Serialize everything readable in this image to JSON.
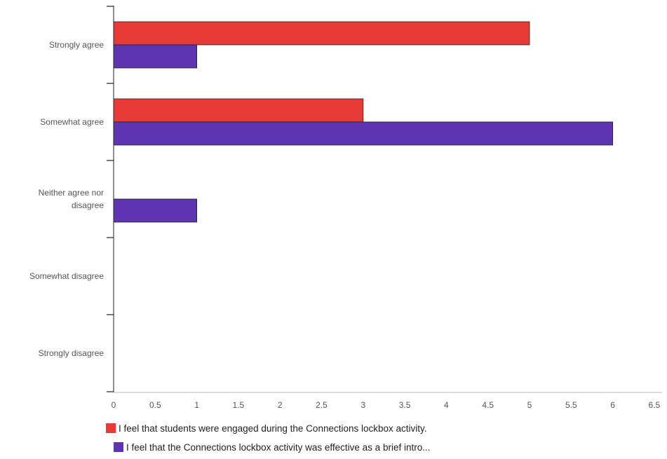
{
  "chart_data": {
    "type": "bar",
    "orientation": "horizontal",
    "categories": [
      "Strongly agree",
      "Somewhat agree",
      "Neither agree nor disagree",
      "Somewhat disagree",
      "Strongly disagree"
    ],
    "series": [
      {
        "name": "I feel that students were engaged during the Connections lockbox activity.",
        "color": "#e83a36",
        "values": [
          5,
          3,
          0,
          0,
          0
        ]
      },
      {
        "name": "I feel that the Connections lockbox activity was effective as a brief intro...",
        "color": "#5e35b1",
        "values": [
          1,
          6,
          1,
          0,
          0
        ]
      }
    ],
    "xlim": [
      0,
      6.5
    ],
    "xticks": [
      "0",
      "0.5",
      "1",
      "1.5",
      "2",
      "2.5",
      "3",
      "3.5",
      "4",
      "4.5",
      "5",
      "5.5",
      "6",
      "6.5"
    ],
    "title": "",
    "xlabel": "",
    "ylabel": "",
    "grid": false,
    "legend_position": "bottom"
  }
}
